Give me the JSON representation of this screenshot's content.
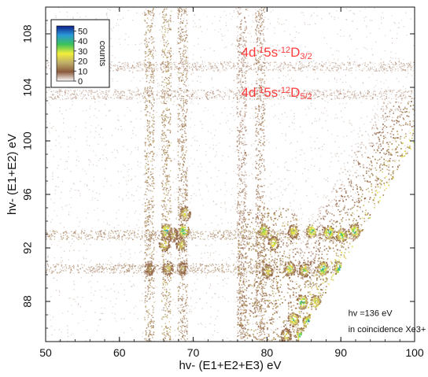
{
  "chart_data": {
    "type": "heatmap",
    "title": "",
    "xlabel": "hv- (E1+E2+E3) eV",
    "ylabel": "hv- (E1+E2) eV",
    "xlim": [
      50,
      100
    ],
    "ylim": [
      85,
      110
    ],
    "xticks": [
      50,
      60,
      70,
      80,
      90,
      100
    ],
    "yticks": [
      88,
      92,
      96,
      100,
      104,
      108
    ],
    "colorbar": {
      "label": "counts",
      "range": [
        0,
        55
      ],
      "ticks": [
        0,
        10,
        20,
        30,
        40,
        50
      ],
      "placement": "top-left",
      "colors": [
        "#ffffff",
        "#8b5a3c",
        "#bfae6a",
        "#f2ee3a",
        "#3cc25a",
        "#2a9ad8",
        "#0d1f8c"
      ]
    },
    "diagonal_boundary": {
      "x": [
        84,
        100
      ],
      "y": [
        85,
        100
      ]
    },
    "bands": [
      {
        "x": 64.0,
        "intensity": 18
      },
      {
        "x": 66.3,
        "intensity": 20
      },
      {
        "x": 68.5,
        "intensity": 16
      },
      {
        "x": 76.5,
        "intensity": 10
      },
      {
        "x": 79.0,
        "intensity": 14
      }
    ],
    "rows": [
      {
        "y": 90.5,
        "intensity": 14
      },
      {
        "y": 93.0,
        "intensity": 16
      },
      {
        "y": 103.5,
        "intensity": 8
      },
      {
        "y": 105.6,
        "intensity": 8
      }
    ],
    "hotspots": [
      {
        "x": 66.3,
        "y": 93.3,
        "value": 50
      },
      {
        "x": 68.6,
        "y": 93.3,
        "value": 48
      },
      {
        "x": 66.0,
        "y": 92.3,
        "value": 34
      },
      {
        "x": 68.3,
        "y": 92.3,
        "value": 30
      },
      {
        "x": 67.2,
        "y": 93.0,
        "value": 25
      },
      {
        "x": 68.8,
        "y": 94.6,
        "value": 35
      },
      {
        "x": 64.0,
        "y": 90.5,
        "value": 22
      },
      {
        "x": 66.5,
        "y": 90.5,
        "value": 28
      },
      {
        "x": 68.5,
        "y": 90.5,
        "value": 22
      },
      {
        "x": 79.5,
        "y": 93.3,
        "value": 42
      },
      {
        "x": 80.8,
        "y": 92.4,
        "value": 36
      },
      {
        "x": 83.5,
        "y": 93.3,
        "value": 38
      },
      {
        "x": 86.0,
        "y": 93.3,
        "value": 45
      },
      {
        "x": 88.3,
        "y": 93.2,
        "value": 50
      },
      {
        "x": 90.0,
        "y": 93.0,
        "value": 46
      },
      {
        "x": 91.8,
        "y": 93.3,
        "value": 44
      },
      {
        "x": 93.3,
        "y": 93.0,
        "value": 48
      },
      {
        "x": 80.0,
        "y": 90.3,
        "value": 30
      },
      {
        "x": 83.0,
        "y": 90.5,
        "value": 38
      },
      {
        "x": 85.0,
        "y": 90.4,
        "value": 40
      },
      {
        "x": 87.5,
        "y": 90.5,
        "value": 52
      },
      {
        "x": 89.7,
        "y": 90.5,
        "value": 50
      },
      {
        "x": 92.0,
        "y": 90.5,
        "value": 44
      },
      {
        "x": 84.7,
        "y": 88.0,
        "value": 50
      },
      {
        "x": 86.5,
        "y": 88.0,
        "value": 40
      },
      {
        "x": 83.5,
        "y": 86.7,
        "value": 45
      },
      {
        "x": 85.5,
        "y": 86.5,
        "value": 52
      },
      {
        "x": 87.0,
        "y": 86.0,
        "value": 36
      },
      {
        "x": 84.5,
        "y": 85.5,
        "value": 50
      },
      {
        "x": 86.0,
        "y": 85.5,
        "value": 45
      },
      {
        "x": 82.5,
        "y": 85.5,
        "value": 30
      }
    ],
    "annotations": [
      {
        "x": 76.5,
        "y": 106.3,
        "segments": [
          {
            "t": "4d",
            "s": "n"
          },
          {
            "t": "-1",
            "s": "sup"
          },
          {
            "t": "5s",
            "s": "n"
          },
          {
            "t": "-1",
            "s": "sup"
          },
          {
            "t": "2",
            "s": "sup"
          },
          {
            "t": "D",
            "s": "n"
          },
          {
            "t": "3/2",
            "s": "sub"
          }
        ]
      },
      {
        "x": 76.5,
        "y": 103.3,
        "segments": [
          {
            "t": "4d",
            "s": "n"
          },
          {
            "t": "-1",
            "s": "sup"
          },
          {
            "t": "5s",
            "s": "n"
          },
          {
            "t": "-1",
            "s": "sup"
          },
          {
            "t": "2",
            "s": "sup"
          },
          {
            "t": "D",
            "s": "n"
          },
          {
            "t": "5/2",
            "s": "sub"
          }
        ]
      }
    ],
    "notes": [
      {
        "x": 91.0,
        "y": 86.9,
        "text": "hv =136 eV"
      },
      {
        "x": 91.0,
        "y": 85.7,
        "text": "in coincidence Xe3+"
      }
    ]
  }
}
